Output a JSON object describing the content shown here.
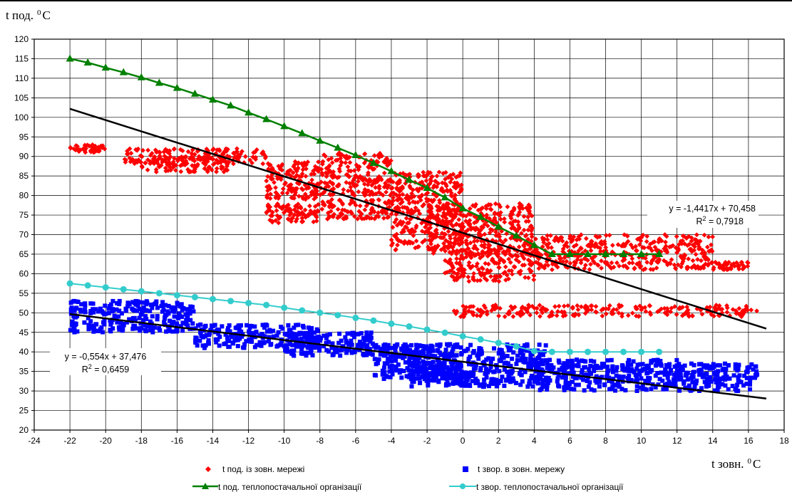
{
  "chart_data": {
    "type": "scatter",
    "xlabel": "t зовн.",
    "ylabel": "t под.",
    "unit_sup": "0",
    "unit": "C",
    "xlim": [
      -24,
      18
    ],
    "ylim": [
      20,
      120
    ],
    "xticks": [
      -24,
      -22,
      -20,
      -18,
      -16,
      -14,
      -12,
      -10,
      -8,
      -6,
      -4,
      -2,
      0,
      2,
      4,
      6,
      8,
      10,
      12,
      14,
      16,
      18
    ],
    "yticks": [
      20,
      25,
      30,
      35,
      40,
      45,
      50,
      55,
      60,
      65,
      70,
      75,
      80,
      85,
      90,
      95,
      100,
      105,
      110,
      115,
      120
    ],
    "grid": true,
    "legend_position": "bottom",
    "colors": {
      "supply_measured": "#ff0000",
      "return_measured": "#0000ff",
      "supply_schedule": "#008000",
      "return_schedule": "#33cccc",
      "trend": "#000000"
    },
    "series": [
      {
        "name": "t под. із зовн. мережі",
        "kind": "scatter",
        "marker": "diamond",
        "clusters": [
          {
            "x_range": [
              -22,
              -20
            ],
            "y_range": [
              91,
              93
            ]
          },
          {
            "x_range": [
              -19,
              -11
            ],
            "y_range": [
              88,
              92
            ]
          },
          {
            "x_range": [
              -18,
              -13
            ],
            "y_range": [
              86,
              90
            ]
          },
          {
            "x_range": [
              -11,
              -8
            ],
            "y_range": [
              79,
              89
            ]
          },
          {
            "x_range": [
              -11,
              -8
            ],
            "y_range": [
              73,
              78
            ]
          },
          {
            "x_range": [
              -8,
              -4
            ],
            "y_range": [
              80,
              91
            ]
          },
          {
            "x_range": [
              -8,
              -4
            ],
            "y_range": [
              74,
              79
            ]
          },
          {
            "x_range": [
              -4,
              0
            ],
            "y_range": [
              66,
              86
            ]
          },
          {
            "x_range": [
              -2,
              4
            ],
            "y_range": [
              65,
              78
            ]
          },
          {
            "x_range": [
              -1,
              4
            ],
            "y_range": [
              58,
              66
            ]
          },
          {
            "x_range": [
              4,
              14
            ],
            "y_range": [
              61,
              70
            ]
          },
          {
            "x_range": [
              -0.5,
              16.5
            ],
            "y_range": [
              49,
              52
            ]
          },
          {
            "x_range": [
              14,
              16
            ],
            "y_range": [
              61,
              63
            ]
          }
        ]
      },
      {
        "name": "t звор. в зовн. мережу",
        "kind": "scatter",
        "marker": "square",
        "clusters": [
          {
            "x_range": [
              -22,
              -15
            ],
            "y_range": [
              45,
              53
            ]
          },
          {
            "x_range": [
              -15,
              -8
            ],
            "y_range": [
              41,
              47
            ]
          },
          {
            "x_range": [
              -10,
              -5
            ],
            "y_range": [
              39,
              45
            ]
          },
          {
            "x_range": [
              -5,
              0
            ],
            "y_range": [
              33,
              42
            ]
          },
          {
            "x_range": [
              -3,
              5
            ],
            "y_range": [
              31,
              42
            ]
          },
          {
            "x_range": [
              4,
              12
            ],
            "y_range": [
              30,
              38
            ]
          },
          {
            "x_range": [
              12,
              16.5
            ],
            "y_range": [
              30,
              37
            ]
          }
        ]
      },
      {
        "name": "t под. теплопостачальної організації",
        "kind": "line",
        "marker": "triangle",
        "x": [
          -22,
          -21,
          -20,
          -19,
          -18,
          -17,
          -16,
          -15,
          -14,
          -13,
          -12,
          -11,
          -10,
          -9,
          -8,
          -7,
          -6,
          -5,
          -4,
          -3,
          -2,
          -1,
          0,
          1,
          2,
          3,
          4,
          5,
          6,
          7,
          8,
          9,
          10,
          11
        ],
        "y": [
          115,
          114,
          112.7,
          111.5,
          110.2,
          108.8,
          107.5,
          106,
          104.5,
          103,
          101.2,
          99.5,
          97.7,
          95.9,
          94,
          92.2,
          90.3,
          88.3,
          86.2,
          84,
          81.9,
          79.5,
          76.7,
          74.5,
          72,
          69.7,
          67.3,
          65,
          65,
          65,
          65,
          65,
          65,
          65
        ]
      },
      {
        "name": "t звор. теплопостачальної організації",
        "kind": "line",
        "marker": "circle",
        "x": [
          -22,
          -21,
          -20,
          -19,
          -18,
          -17,
          -16,
          -15,
          -14,
          -13,
          -12,
          -11,
          -10,
          -9,
          -8,
          -7,
          -6,
          -5,
          -4,
          -3,
          -2,
          -1,
          0,
          1,
          2,
          3,
          4,
          5,
          6,
          7,
          8,
          9,
          10,
          11
        ],
        "y": [
          57.5,
          57,
          56.5,
          56,
          55.5,
          55,
          54.5,
          54,
          53.5,
          53,
          52.5,
          52,
          51.3,
          50.6,
          50,
          49.4,
          48.7,
          48,
          47.2,
          46.5,
          45.7,
          44.9,
          44,
          43.2,
          42.3,
          41.4,
          40.2,
          40,
          40,
          40,
          40,
          40,
          40,
          40
        ]
      }
    ],
    "trendlines": [
      {
        "slope": -1.4417,
        "intercept": 70.458,
        "x_range": [
          -22,
          17
        ],
        "equation": "y = -1,4417x + 70,458",
        "r2_prefix": "R",
        "r2_sup": "2",
        "r2_value": " = 0,7918"
      },
      {
        "slope": -0.554,
        "intercept": 37.476,
        "x_range": [
          -22,
          17
        ],
        "equation": "y = -0,554x + 37,476",
        "r2_prefix": "R",
        "r2_sup": "2",
        "r2_value": " = 0,6459"
      }
    ]
  }
}
